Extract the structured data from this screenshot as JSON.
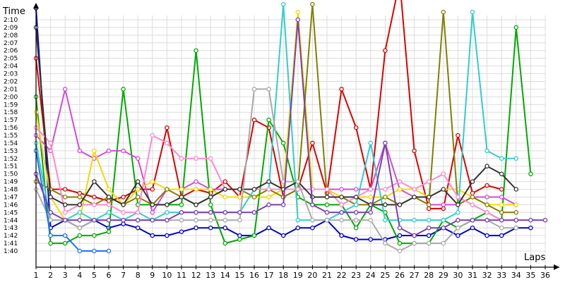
{
  "chart_data": {
    "type": "line",
    "ylabel": "Time",
    "xlabel": "Laps",
    "grid": true,
    "xlim": [
      1,
      36
    ],
    "ylim": [
      99,
      132
    ],
    "x": [
      1,
      2,
      3,
      4,
      5,
      6,
      7,
      8,
      9,
      10,
      11,
      12,
      13,
      14,
      15,
      16,
      17,
      18,
      19,
      20,
      21,
      22,
      23,
      24,
      25,
      26,
      27,
      28,
      29,
      30,
      31,
      32,
      33,
      34,
      35,
      36
    ],
    "x_ticks": [
      "1",
      "2",
      "3",
      "4",
      "5",
      "6",
      "7",
      "8",
      "9",
      "10",
      "11",
      "12",
      "13",
      "14",
      "15",
      "16",
      "17",
      "18",
      "19",
      "20",
      "21",
      "22",
      "23",
      "24",
      "25",
      "26",
      "27",
      "28",
      "29",
      "30",
      "31",
      "32",
      "33",
      "34",
      "35",
      "36"
    ],
    "y_ticks": [
      {
        "v": 100,
        "label": "1:40"
      },
      {
        "v": 101,
        "label": "1:41"
      },
      {
        "v": 102,
        "label": "1:42"
      },
      {
        "v": 103,
        "label": "1:43"
      },
      {
        "v": 104,
        "label": "1:44"
      },
      {
        "v": 105,
        "label": "1:45"
      },
      {
        "v": 106,
        "label": "1:46"
      },
      {
        "v": 107,
        "label": "1:47"
      },
      {
        "v": 108,
        "label": "1:48"
      },
      {
        "v": 109,
        "label": "1:49"
      },
      {
        "v": 110,
        "label": "1:50"
      },
      {
        "v": 111,
        "label": "1:51"
      },
      {
        "v": 112,
        "label": "1:52"
      },
      {
        "v": 113,
        "label": "1:53"
      },
      {
        "v": 114,
        "label": "1:54"
      },
      {
        "v": 115,
        "label": "1:55"
      },
      {
        "v": 116,
        "label": "1:56"
      },
      {
        "v": 117,
        "label": "1:57"
      },
      {
        "v": 118,
        "label": "1:58"
      },
      {
        "v": 119,
        "label": "1:59"
      },
      {
        "v": 120,
        "label": "2:00"
      },
      {
        "v": 121,
        "label": "2:01"
      },
      {
        "v": 122,
        "label": "2:02"
      },
      {
        "v": 123,
        "label": "2:03"
      },
      {
        "v": 124,
        "label": "2:04"
      },
      {
        "v": 125,
        "label": "2:05"
      },
      {
        "v": 126,
        "label": "2:06"
      },
      {
        "v": 127,
        "label": "2:07"
      },
      {
        "v": 128,
        "label": "2:08"
      },
      {
        "v": 129,
        "label": "2:09"
      },
      {
        "v": 130,
        "label": "2:10"
      }
    ],
    "series": [
      {
        "color": "#0000cc",
        "values": [
          131.5,
          103,
          104,
          103,
          104,
          103,
          103.5,
          103,
          102,
          102,
          102.5,
          103,
          103,
          103,
          102,
          102,
          103,
          102,
          103,
          103,
          104,
          102,
          101.5,
          101.5,
          101.5,
          102,
          102,
          102,
          103,
          102,
          103,
          102,
          102,
          103,
          103,
          null
        ]
      },
      {
        "color": "#dd0000",
        "values": [
          125,
          108,
          108,
          107.5,
          107,
          106.5,
          107,
          108,
          108,
          116,
          107,
          108,
          107.5,
          109,
          107,
          117,
          116,
          107,
          108,
          114,
          107.5,
          121,
          116,
          108,
          126,
          135,
          113,
          105.5,
          105.5,
          115,
          107.5,
          108.5,
          108,
          null,
          null,
          null
        ]
      },
      {
        "color": "#00aa00",
        "values": [
          120,
          101,
          101,
          102,
          102,
          102.5,
          121,
          106,
          106,
          106,
          106,
          126,
          106,
          101,
          101.5,
          102,
          117,
          114,
          107,
          106,
          106,
          106,
          103,
          106,
          105,
          101,
          101,
          101,
          104,
          103,
          104,
          105,
          104,
          129,
          110,
          null
        ]
      },
      {
        "color": "#d44bd4",
        "values": [
          115,
          113,
          121,
          113,
          112,
          113,
          113,
          112,
          105,
          108,
          108,
          109,
          108,
          108,
          108,
          108,
          108,
          108,
          108,
          108,
          108,
          108,
          108,
          108,
          114,
          108,
          107,
          106,
          106,
          106,
          107,
          107,
          107,
          106,
          null,
          null
        ]
      },
      {
        "color": "#f5d800",
        "values": [
          118,
          107,
          104,
          104,
          113,
          108,
          106,
          108,
          109,
          108,
          108,
          108,
          108,
          107,
          107,
          107,
          107,
          108,
          131,
          108,
          108,
          107,
          107,
          107,
          107,
          108,
          108,
          107,
          108,
          108,
          107,
          106,
          106,
          106,
          null,
          null
        ]
      },
      {
        "color": "#808000",
        "values": [
          109,
          108,
          107,
          107,
          106,
          107,
          106,
          107,
          106,
          108,
          107,
          106,
          107,
          108,
          108,
          107,
          108,
          107,
          108,
          132,
          107,
          107,
          106,
          106,
          107,
          106,
          107,
          106,
          131,
          106,
          107,
          106,
          105,
          105,
          null,
          null
        ]
      },
      {
        "color": "#33cccc",
        "values": [
          114,
          104,
          104,
          105,
          104,
          105,
          104,
          105,
          104,
          105,
          105,
          105,
          105,
          105,
          105,
          108,
          108,
          132,
          104,
          104,
          104,
          105,
          106,
          114,
          104,
          104,
          104,
          104,
          104,
          105,
          131,
          113,
          112,
          112,
          null,
          null
        ]
      },
      {
        "color": "#ff88cc",
        "values": [
          116,
          114,
          105,
          106,
          106,
          106,
          105,
          105,
          115,
          114,
          112,
          112,
          112,
          108,
          108,
          108,
          108,
          108,
          108,
          108,
          108,
          106,
          107,
          108,
          108,
          109,
          108,
          109,
          110,
          107,
          106,
          105,
          104,
          104,
          null,
          null
        ]
      },
      {
        "color": "#333333",
        "values": [
          129,
          107,
          106,
          106,
          109,
          107,
          106,
          109,
          106,
          106,
          107,
          106,
          107,
          108,
          108,
          108,
          109,
          108,
          109,
          107,
          107,
          107,
          107,
          106,
          106,
          106,
          107,
          107,
          108,
          106,
          109,
          111,
          110,
          108,
          null,
          null
        ]
      },
      {
        "color": "#aaaaaa",
        "values": [
          108,
          104,
          104,
          103,
          104,
          104,
          104,
          104,
          104,
          104,
          104,
          104,
          104,
          104,
          104,
          121,
          121,
          109,
          109,
          104,
          104,
          104,
          104,
          104,
          101,
          100,
          101,
          101,
          101,
          103,
          104,
          104,
          103,
          103,
          null,
          null
        ]
      },
      {
        "color": "#1e6fff",
        "values": [
          113,
          102,
          102,
          100,
          100,
          100,
          null,
          null,
          null,
          null,
          null,
          null,
          null,
          null,
          null,
          null,
          null,
          null,
          null,
          null,
          null,
          null,
          null,
          null,
          null,
          null,
          null,
          null,
          null,
          null,
          null,
          null,
          null,
          null,
          null,
          null
        ]
      },
      {
        "color": "#7a3fb0",
        "values": [
          110,
          105,
          104,
          104,
          104,
          104,
          104,
          104,
          104,
          104,
          105,
          105,
          105,
          105,
          105,
          105,
          106,
          106,
          130,
          106,
          105,
          105,
          105,
          105,
          114,
          103,
          102,
          103,
          103,
          104,
          104,
          104,
          104,
          104,
          104,
          104
        ]
      }
    ]
  }
}
